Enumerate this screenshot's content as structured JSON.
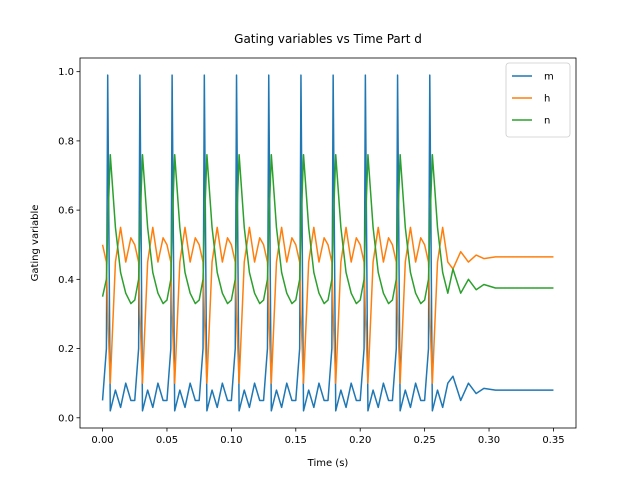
{
  "chart_data": {
    "type": "line",
    "title": "Gating variables vs Time Part d",
    "x_label": "Time (s)",
    "y_label": "Gating variable",
    "x": [
      0,
      0.003,
      0.004,
      0.006,
      0.01,
      0.014,
      0.018,
      0.022,
      0.025,
      0.028,
      0.029,
      0.031,
      0.035,
      0.039,
      0.043,
      0.047,
      0.05,
      0.053,
      0.054,
      0.056,
      0.06,
      0.064,
      0.068,
      0.072,
      0.075,
      0.078,
      0.079,
      0.081,
      0.085,
      0.089,
      0.093,
      0.097,
      0.1,
      0.103,
      0.104,
      0.106,
      0.11,
      0.114,
      0.118,
      0.122,
      0.125,
      0.128,
      0.129,
      0.131,
      0.135,
      0.139,
      0.143,
      0.147,
      0.15,
      0.153,
      0.154,
      0.156,
      0.16,
      0.164,
      0.168,
      0.172,
      0.175,
      0.178,
      0.179,
      0.181,
      0.185,
      0.189,
      0.193,
      0.197,
      0.2,
      0.203,
      0.204,
      0.206,
      0.21,
      0.214,
      0.218,
      0.222,
      0.225,
      0.228,
      0.229,
      0.231,
      0.235,
      0.239,
      0.243,
      0.247,
      0.25,
      0.253,
      0.254,
      0.256,
      0.26,
      0.264,
      0.268,
      0.272,
      0.278,
      0.284,
      0.29,
      0.296,
      0.305,
      0.35
    ],
    "series": [
      {
        "name": "m",
        "color": "#1f77b4",
        "values": [
          0.05,
          0.2,
          0.99,
          0.02,
          0.08,
          0.03,
          0.1,
          0.05,
          0.05,
          0.2,
          0.99,
          0.02,
          0.08,
          0.03,
          0.1,
          0.05,
          0.05,
          0.2,
          0.99,
          0.02,
          0.08,
          0.03,
          0.1,
          0.05,
          0.05,
          0.2,
          0.99,
          0.02,
          0.08,
          0.03,
          0.1,
          0.05,
          0.05,
          0.2,
          0.99,
          0.02,
          0.08,
          0.03,
          0.1,
          0.05,
          0.05,
          0.2,
          0.99,
          0.02,
          0.08,
          0.03,
          0.1,
          0.05,
          0.05,
          0.2,
          0.99,
          0.02,
          0.08,
          0.03,
          0.1,
          0.05,
          0.05,
          0.2,
          0.99,
          0.02,
          0.08,
          0.03,
          0.1,
          0.05,
          0.05,
          0.2,
          0.99,
          0.02,
          0.08,
          0.03,
          0.1,
          0.05,
          0.05,
          0.2,
          0.99,
          0.02,
          0.08,
          0.03,
          0.1,
          0.05,
          0.05,
          0.2,
          0.99,
          0.02,
          0.08,
          0.03,
          0.1,
          0.12,
          0.05,
          0.1,
          0.07,
          0.085,
          0.08,
          0.08
        ]
      },
      {
        "name": "h",
        "color": "#ff7f0e",
        "values": [
          0.5,
          0.45,
          0.3,
          0.1,
          0.45,
          0.55,
          0.45,
          0.52,
          0.5,
          0.45,
          0.3,
          0.1,
          0.45,
          0.55,
          0.45,
          0.52,
          0.5,
          0.45,
          0.3,
          0.1,
          0.45,
          0.55,
          0.45,
          0.52,
          0.5,
          0.45,
          0.3,
          0.1,
          0.45,
          0.55,
          0.45,
          0.52,
          0.5,
          0.45,
          0.3,
          0.1,
          0.45,
          0.55,
          0.45,
          0.52,
          0.5,
          0.45,
          0.3,
          0.1,
          0.45,
          0.55,
          0.45,
          0.52,
          0.5,
          0.45,
          0.3,
          0.1,
          0.45,
          0.55,
          0.45,
          0.52,
          0.5,
          0.45,
          0.3,
          0.1,
          0.45,
          0.55,
          0.45,
          0.52,
          0.5,
          0.45,
          0.3,
          0.1,
          0.45,
          0.55,
          0.45,
          0.52,
          0.5,
          0.45,
          0.3,
          0.1,
          0.45,
          0.55,
          0.45,
          0.52,
          0.5,
          0.45,
          0.3,
          0.1,
          0.45,
          0.55,
          0.45,
          0.43,
          0.48,
          0.45,
          0.47,
          0.46,
          0.465,
          0.465
        ]
      },
      {
        "name": "n",
        "color": "#2ca02c",
        "values": [
          0.35,
          0.4,
          0.55,
          0.76,
          0.55,
          0.42,
          0.36,
          0.33,
          0.34,
          0.4,
          0.55,
          0.76,
          0.55,
          0.42,
          0.36,
          0.33,
          0.34,
          0.4,
          0.55,
          0.76,
          0.55,
          0.42,
          0.36,
          0.33,
          0.34,
          0.4,
          0.55,
          0.76,
          0.55,
          0.42,
          0.36,
          0.33,
          0.34,
          0.4,
          0.55,
          0.76,
          0.55,
          0.42,
          0.36,
          0.33,
          0.34,
          0.4,
          0.55,
          0.76,
          0.55,
          0.42,
          0.36,
          0.33,
          0.34,
          0.4,
          0.55,
          0.76,
          0.55,
          0.42,
          0.36,
          0.33,
          0.34,
          0.4,
          0.55,
          0.76,
          0.55,
          0.42,
          0.36,
          0.33,
          0.34,
          0.4,
          0.55,
          0.76,
          0.55,
          0.42,
          0.36,
          0.33,
          0.34,
          0.4,
          0.55,
          0.76,
          0.55,
          0.42,
          0.36,
          0.33,
          0.34,
          0.4,
          0.55,
          0.76,
          0.55,
          0.42,
          0.36,
          0.43,
          0.36,
          0.4,
          0.37,
          0.385,
          0.375,
          0.375
        ]
      }
    ],
    "xlim": [
      -0.0175,
      0.3675
    ],
    "ylim": [
      -0.0295,
      1.0395
    ],
    "xticks": [
      {
        "value": 0,
        "label": "0.00"
      },
      {
        "value": 0.05,
        "label": "0.05"
      },
      {
        "value": 0.1,
        "label": "0.10"
      },
      {
        "value": 0.15,
        "label": "0.15"
      },
      {
        "value": 0.2,
        "label": "0.20"
      },
      {
        "value": 0.25,
        "label": "0.25"
      },
      {
        "value": 0.3,
        "label": "0.30"
      },
      {
        "value": 0.35,
        "label": "0.35"
      }
    ],
    "yticks": [
      {
        "value": 0,
        "label": "0.0"
      },
      {
        "value": 0.2,
        "label": "0.2"
      },
      {
        "value": 0.4,
        "label": "0.4"
      },
      {
        "value": 0.6,
        "label": "0.6"
      },
      {
        "value": 0.8,
        "label": "0.8"
      },
      {
        "value": 1,
        "label": "1.0"
      }
    ],
    "legend": "upper right"
  }
}
